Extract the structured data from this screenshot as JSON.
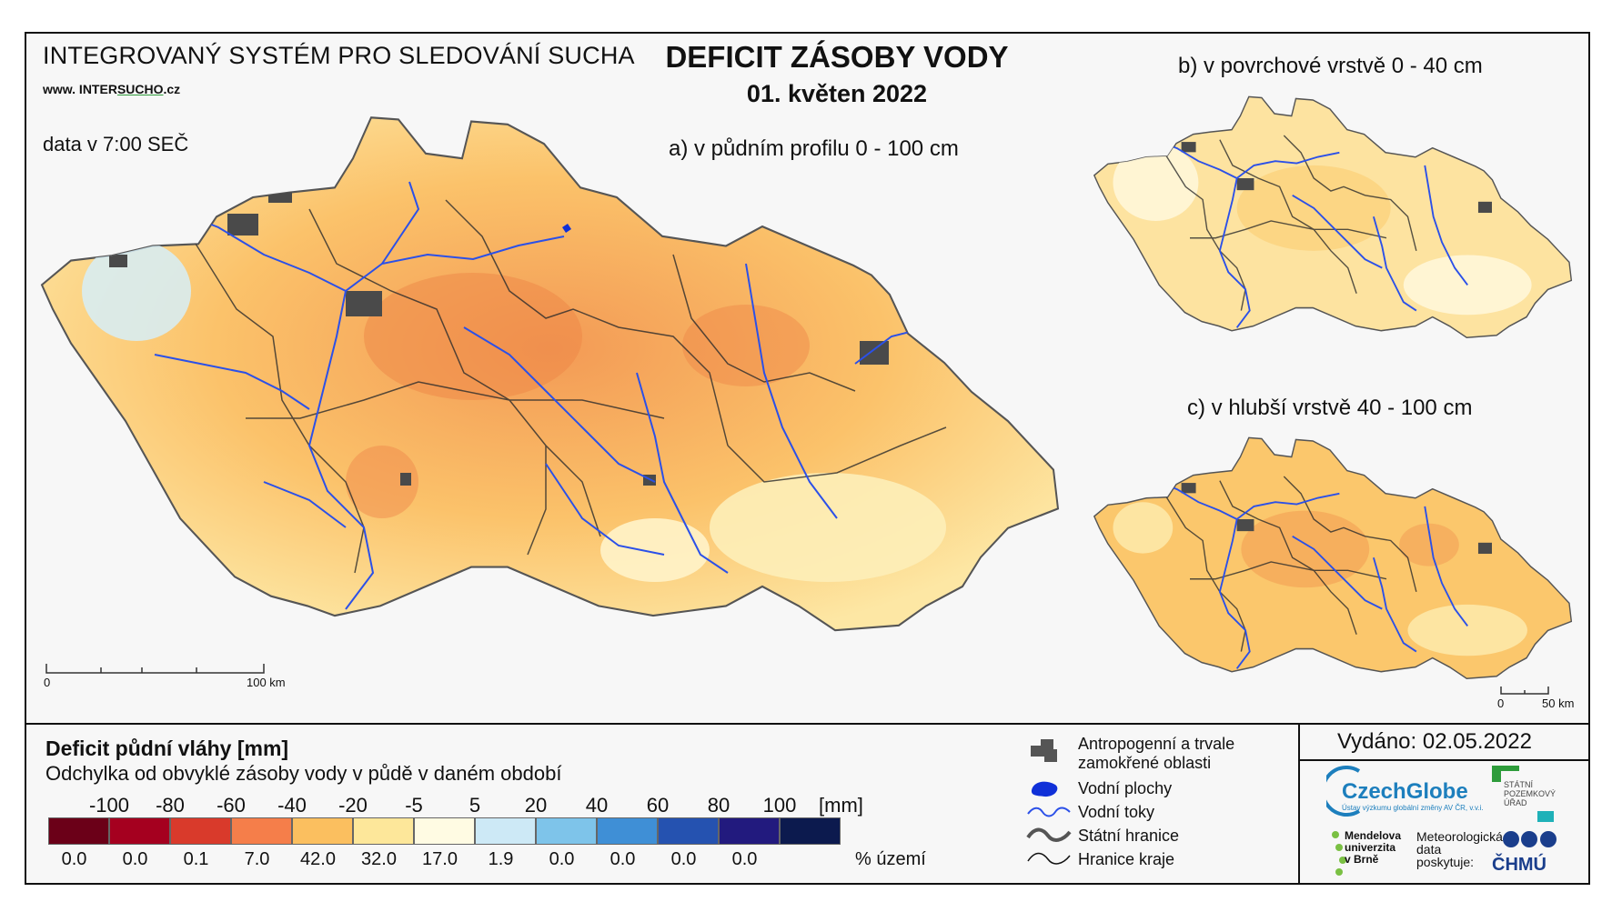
{
  "header": {
    "system_title": "INTEGROVANÝ SYSTÉM PRO SLEDOVÁNÍ SUCHA",
    "website_prefix": "www. INTER",
    "website_highlight": "SUCHO",
    "website_suffix": ".cz",
    "data_time": "data v 7:00 SEČ",
    "main_title": "DEFICIT ZÁSOBY VODY",
    "date": "01. květen 2022"
  },
  "maps": {
    "a_caption": "a) v půdním profilu 0 - 100 cm",
    "b_caption": "b) v povrchové vrstvě 0 - 40 cm",
    "c_caption": "c) v hlubší vrstvě 40 - 100 cm",
    "scale_main": {
      "start": "0",
      "end": "100 km"
    },
    "scale_small": {
      "start": "0",
      "end": "50 km"
    }
  },
  "legend": {
    "title": "Deficit půdní vláhy  [mm]",
    "subtitle": "Odchylka od obvyklé zásoby vody v půdě v daném období",
    "ticks": [
      "-100",
      "-80",
      "-60",
      "-40",
      "-20",
      "-5",
      "5",
      "20",
      "40",
      "60",
      "80",
      "100"
    ],
    "unit": "[mm]",
    "colors": [
      "#6b0018",
      "#a5001f",
      "#d93a2b",
      "#f57e4a",
      "#fbbf5f",
      "#fde79a",
      "#fffbe3",
      "#cde9f6",
      "#7ec4ea",
      "#3f8fd6",
      "#2552b0",
      "#221a7e",
      "#0c1a4e"
    ],
    "percentages": [
      "0.0",
      "0.0",
      "0.1",
      "7.0",
      "42.0",
      "32.0",
      "17.0",
      "1.9",
      "0.0",
      "0.0",
      "0.0",
      "0.0"
    ],
    "percent_unit": "% území"
  },
  "map_legend": {
    "urban": "Antropogenní a trvale\nzamokřené oblasti",
    "water_bodies": "Vodní plochy",
    "rivers": "Vodní toky",
    "state_border": "Státní hranice",
    "region_border": "Hranice kraje"
  },
  "footer": {
    "issued": "Vydáno: 02.05.2022",
    "czechglobe": "CzechGlobe",
    "czechglobe_sub": "Ústav výzkumu globální změny AV ČR, v.v.i.",
    "spu": "STÁTNÍ\nPOZEMKOVÝ\nÚŘAD",
    "mendelu": "Mendelova\nuniverzita\nv Brně",
    "met_data": "Meteorologická\ndata\nposkytuje:",
    "chmu": "ČHMÚ"
  }
}
